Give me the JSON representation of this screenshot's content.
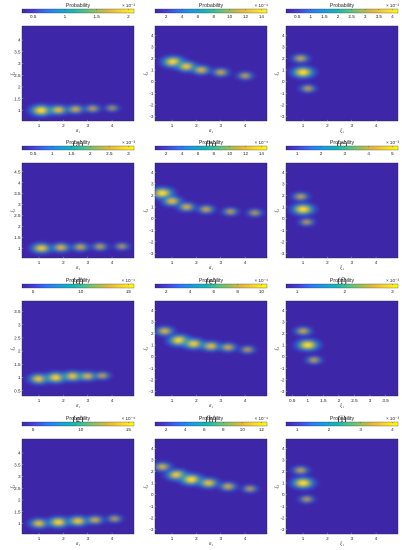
{
  "colors": {
    "background": "#3e26a8",
    "colormap": [
      "#3e26a8",
      "#4743e1",
      "#2c76f9",
      "#1b9bde",
      "#13b3ba",
      "#4bc28d",
      "#9cbd5b",
      "#e2b93c",
      "#fbd631",
      "#f9fb15"
    ]
  },
  "chart_data": [
    {
      "type": "heatmap",
      "caption": "(a)",
      "colorbar": {
        "title": "Probability",
        "ticks": [
          "0.5",
          "1",
          "1.5",
          "2"
        ],
        "multiplier": "× 10⁻³"
      },
      "xlabel": "σ₁",
      "ylabel": "ξ₁",
      "xticks": [
        "1",
        "2",
        "3",
        "4"
      ],
      "yticks": [
        "1",
        "1.5",
        "2",
        "2.5",
        "3",
        "3.5",
        "4"
      ],
      "xlim": [
        0.3,
        4.9
      ],
      "ylim": [
        0.55,
        4.6
      ],
      "peaks": [
        {
          "x": 1.1,
          "y": 1.0,
          "p": 1.0
        },
        {
          "x": 1.8,
          "y": 1.02,
          "p": 0.7
        },
        {
          "x": 2.5,
          "y": 1.05,
          "p": 0.5
        },
        {
          "x": 3.2,
          "y": 1.08,
          "p": 0.35
        },
        {
          "x": 4.0,
          "y": 1.1,
          "p": 0.2
        }
      ]
    },
    {
      "type": "heatmap",
      "caption": "(b)",
      "colorbar": {
        "title": "Probability",
        "ticks": [
          "2",
          "4",
          "6",
          "8",
          "10",
          "12",
          "14"
        ],
        "multiplier": "× 10⁻⁴"
      },
      "xlabel": "σ₁",
      "ylabel": "ξ₁",
      "xticks": [
        "1",
        "2",
        "3",
        "4"
      ],
      "yticks": [
        "-3",
        "-2",
        "-1",
        "0",
        "1",
        "2",
        "3",
        "4"
      ],
      "xlim": [
        0.3,
        4.9
      ],
      "ylim": [
        -3.4,
        4.8
      ],
      "peaks": [
        {
          "x": 1.05,
          "y": 1.7,
          "p": 1.0
        },
        {
          "x": 1.6,
          "y": 1.3,
          "p": 0.8
        },
        {
          "x": 2.2,
          "y": 1.0,
          "p": 0.6
        },
        {
          "x": 3.0,
          "y": 0.8,
          "p": 0.45
        },
        {
          "x": 4.0,
          "y": 0.5,
          "p": 0.35
        }
      ]
    },
    {
      "type": "heatmap",
      "caption": "(c)",
      "colorbar": {
        "title": "Probability",
        "ticks": [
          "0.5",
          "1",
          "1.5",
          "2",
          "2.5",
          "3",
          "3.5",
          "4"
        ],
        "multiplier": "× 10⁻³"
      },
      "xlabel": "ξ₁",
      "ylabel": "ξ₁",
      "xticks": [
        "1",
        "2",
        "3",
        "4"
      ],
      "yticks": [
        "-3",
        "-2",
        "-1",
        "0",
        "1",
        "2",
        "3",
        "4"
      ],
      "xlim": [
        0.3,
        4.9
      ],
      "ylim": [
        -3.4,
        4.8
      ],
      "peaks": [
        {
          "x": 1.0,
          "y": 0.8,
          "p": 1.0
        },
        {
          "x": 0.9,
          "y": 2.0,
          "p": 0.45
        },
        {
          "x": 1.2,
          "y": -0.6,
          "p": 0.35
        }
      ]
    },
    {
      "type": "heatmap",
      "caption": "(d)",
      "colorbar": {
        "title": "Probability",
        "ticks": [
          "0.5",
          "1",
          "1.5",
          "2",
          "2.5",
          "3"
        ],
        "multiplier": "× 10⁻³"
      },
      "xlabel": "σ₁",
      "ylabel": "ξ₁",
      "xticks": [
        "1",
        "2",
        "3",
        "4"
      ],
      "yticks": [
        "1",
        "1.5",
        "2",
        "2.5",
        "3",
        "3.5",
        "4",
        "4.5"
      ],
      "xlim": [
        0.3,
        4.9
      ],
      "ylim": [
        0.55,
        4.9
      ],
      "peaks": [
        {
          "x": 1.1,
          "y": 1.0,
          "p": 0.8
        },
        {
          "x": 1.9,
          "y": 1.03,
          "p": 0.6
        },
        {
          "x": 2.7,
          "y": 1.05,
          "p": 0.45
        },
        {
          "x": 3.5,
          "y": 1.07,
          "p": 0.35
        },
        {
          "x": 4.4,
          "y": 1.08,
          "p": 0.25
        }
      ]
    },
    {
      "type": "heatmap",
      "caption": "(e)",
      "colorbar": {
        "title": "Probability",
        "ticks": [
          "2",
          "4",
          "6",
          "8",
          "10",
          "12",
          "14"
        ],
        "multiplier": "× 10⁻⁴"
      },
      "xlabel": "σ₁",
      "ylabel": "ξ₁",
      "xticks": [
        "1",
        "2",
        "3",
        "4"
      ],
      "yticks": [
        "-3",
        "-2",
        "-1",
        "0",
        "1",
        "2",
        "3",
        "4"
      ],
      "xlim": [
        0.3,
        4.9
      ],
      "ylim": [
        -3.4,
        4.8
      ],
      "peaks": [
        {
          "x": 0.6,
          "y": 2.2,
          "p": 1.0
        },
        {
          "x": 1.0,
          "y": 1.5,
          "p": 0.7
        },
        {
          "x": 1.6,
          "y": 1.0,
          "p": 0.55
        },
        {
          "x": 2.4,
          "y": 0.8,
          "p": 0.45
        },
        {
          "x": 3.4,
          "y": 0.6,
          "p": 0.35
        },
        {
          "x": 4.4,
          "y": 0.5,
          "p": 0.3
        }
      ]
    },
    {
      "type": "heatmap",
      "caption": "(f)",
      "colorbar": {
        "title": "Probability",
        "ticks": [
          "1",
          "2",
          "3",
          "4",
          "5"
        ],
        "multiplier": "× 10⁻³"
      },
      "xlabel": "ξ₁",
      "ylabel": "ξ₁",
      "xticks": [
        "1",
        "2",
        "3",
        "4"
      ],
      "yticks": [
        "-3",
        "-2",
        "-1",
        "0",
        "1",
        "2",
        "3",
        "4"
      ],
      "xlim": [
        0.3,
        4.9
      ],
      "ylim": [
        -3.4,
        4.8
      ],
      "peaks": [
        {
          "x": 1.0,
          "y": 0.8,
          "p": 1.0
        },
        {
          "x": 0.9,
          "y": 1.9,
          "p": 0.4
        },
        {
          "x": 1.15,
          "y": -0.3,
          "p": 0.3
        }
      ]
    },
    {
      "type": "heatmap",
      "caption": "(g)",
      "colorbar": {
        "title": "Probability",
        "ticks": [
          "5",
          "10",
          "15"
        ],
        "multiplier": "× 10⁻⁴"
      },
      "xlabel": "σ₁",
      "ylabel": "ξ₁",
      "xticks": [
        "1",
        "2",
        "3",
        "4"
      ],
      "yticks": [
        "0.5",
        "1",
        "1.5",
        "2",
        "2.5",
        "3",
        "3.5"
      ],
      "xlim": [
        0.3,
        4.9
      ],
      "ylim": [
        0.3,
        3.9
      ],
      "peaks": [
        {
          "x": 1.0,
          "y": 0.95,
          "p": 0.8
        },
        {
          "x": 1.7,
          "y": 1.0,
          "p": 0.9
        },
        {
          "x": 2.4,
          "y": 1.05,
          "p": 0.8
        },
        {
          "x": 3.0,
          "y": 1.05,
          "p": 0.6
        },
        {
          "x": 3.6,
          "y": 1.07,
          "p": 0.35
        }
      ]
    },
    {
      "type": "heatmap",
      "caption": "(h)",
      "colorbar": {
        "title": "Probability",
        "ticks": [
          "2",
          "4",
          "6",
          "8",
          "10"
        ],
        "multiplier": "× 10⁻⁴"
      },
      "xlabel": "σ₁",
      "ylabel": "ξ₁",
      "xticks": [
        "1",
        "2",
        "3",
        "4"
      ],
      "yticks": [
        "-3",
        "-2",
        "-1",
        "0",
        "1",
        "2",
        "3",
        "4"
      ],
      "xlim": [
        0.3,
        4.9
      ],
      "ylim": [
        -3.4,
        4.8
      ],
      "peaks": [
        {
          "x": 0.7,
          "y": 2.2,
          "p": 0.6
        },
        {
          "x": 1.3,
          "y": 1.4,
          "p": 1.0
        },
        {
          "x": 1.9,
          "y": 1.1,
          "p": 0.85
        },
        {
          "x": 2.6,
          "y": 0.9,
          "p": 0.7
        },
        {
          "x": 3.3,
          "y": 0.8,
          "p": 0.5
        },
        {
          "x": 4.1,
          "y": 0.6,
          "p": 0.3
        }
      ]
    },
    {
      "type": "heatmap",
      "caption": "(i)",
      "colorbar": {
        "title": "Probability",
        "ticks": [
          "1",
          "2",
          "3"
        ],
        "multiplier": "× 10⁻³"
      },
      "xlabel": "ξ₁",
      "ylabel": "ξ₁",
      "xticks": [
        "0.5",
        "1",
        "1.5",
        "2",
        "2.5",
        "3",
        "3.5"
      ],
      "yticks": [
        "-3",
        "-2",
        "-1",
        "0",
        "1",
        "2",
        "3",
        "4"
      ],
      "xlim": [
        0.3,
        3.9
      ],
      "ylim": [
        -3.4,
        4.8
      ],
      "peaks": [
        {
          "x": 1.0,
          "y": 1.0,
          "p": 1.0
        },
        {
          "x": 0.85,
          "y": 2.2,
          "p": 0.45
        },
        {
          "x": 1.2,
          "y": -0.3,
          "p": 0.35
        }
      ]
    },
    {
      "type": "heatmap",
      "caption": "(j)",
      "colorbar": {
        "title": "Probability",
        "ticks": [
          "5",
          "10",
          "15"
        ],
        "multiplier": "× 10⁻⁴"
      },
      "xlabel": "σ₁",
      "ylabel": "ξ₁",
      "xticks": [
        "1",
        "2",
        "3",
        "4"
      ],
      "yticks": [
        "1",
        "1.5",
        "2",
        "2.5",
        "3",
        "3.5",
        "4"
      ],
      "xlim": [
        0.3,
        4.9
      ],
      "ylim": [
        0.55,
        4.6
      ],
      "peaks": [
        {
          "x": 1.0,
          "y": 1.0,
          "p": 0.7
        },
        {
          "x": 1.8,
          "y": 1.05,
          "p": 0.9
        },
        {
          "x": 2.6,
          "y": 1.1,
          "p": 0.8
        },
        {
          "x": 3.3,
          "y": 1.15,
          "p": 0.5
        },
        {
          "x": 4.1,
          "y": 1.2,
          "p": 0.3
        }
      ]
    },
    {
      "type": "heatmap",
      "caption": "(k)",
      "colorbar": {
        "title": "Probability",
        "ticks": [
          "2",
          "4",
          "6",
          "8",
          "10",
          "12"
        ],
        "multiplier": "× 10⁻⁴"
      },
      "xlabel": "σ₁",
      "ylabel": "ξ₁",
      "xticks": [
        "1",
        "2",
        "3",
        "4"
      ],
      "yticks": [
        "-3",
        "-2",
        "-1",
        "0",
        "1",
        "2",
        "3",
        "4"
      ],
      "xlim": [
        0.3,
        4.9
      ],
      "ylim": [
        -3.4,
        4.8
      ],
      "peaks": [
        {
          "x": 0.6,
          "y": 2.4,
          "p": 0.55
        },
        {
          "x": 1.2,
          "y": 1.7,
          "p": 0.9
        },
        {
          "x": 1.8,
          "y": 1.3,
          "p": 1.0
        },
        {
          "x": 2.5,
          "y": 1.0,
          "p": 0.75
        },
        {
          "x": 3.3,
          "y": 0.7,
          "p": 0.5
        },
        {
          "x": 4.2,
          "y": 0.5,
          "p": 0.3
        }
      ]
    },
    {
      "type": "heatmap",
      "caption": "(l)",
      "colorbar": {
        "title": "Probability",
        "ticks": [
          "1",
          "2",
          "3",
          "4"
        ],
        "multiplier": "× 10⁻³"
      },
      "xlabel": "ξ₁",
      "ylabel": "ξ₁",
      "xticks": [
        "1",
        "2",
        "3",
        "4"
      ],
      "yticks": [
        "-3",
        "-2",
        "-1",
        "0",
        "1",
        "2",
        "3",
        "4"
      ],
      "xlim": [
        0.3,
        4.9
      ],
      "ylim": [
        -3.4,
        4.8
      ],
      "peaks": [
        {
          "x": 1.0,
          "y": 1.0,
          "p": 1.0
        },
        {
          "x": 0.9,
          "y": 2.1,
          "p": 0.4
        },
        {
          "x": 1.15,
          "y": -0.4,
          "p": 0.3
        }
      ]
    }
  ]
}
